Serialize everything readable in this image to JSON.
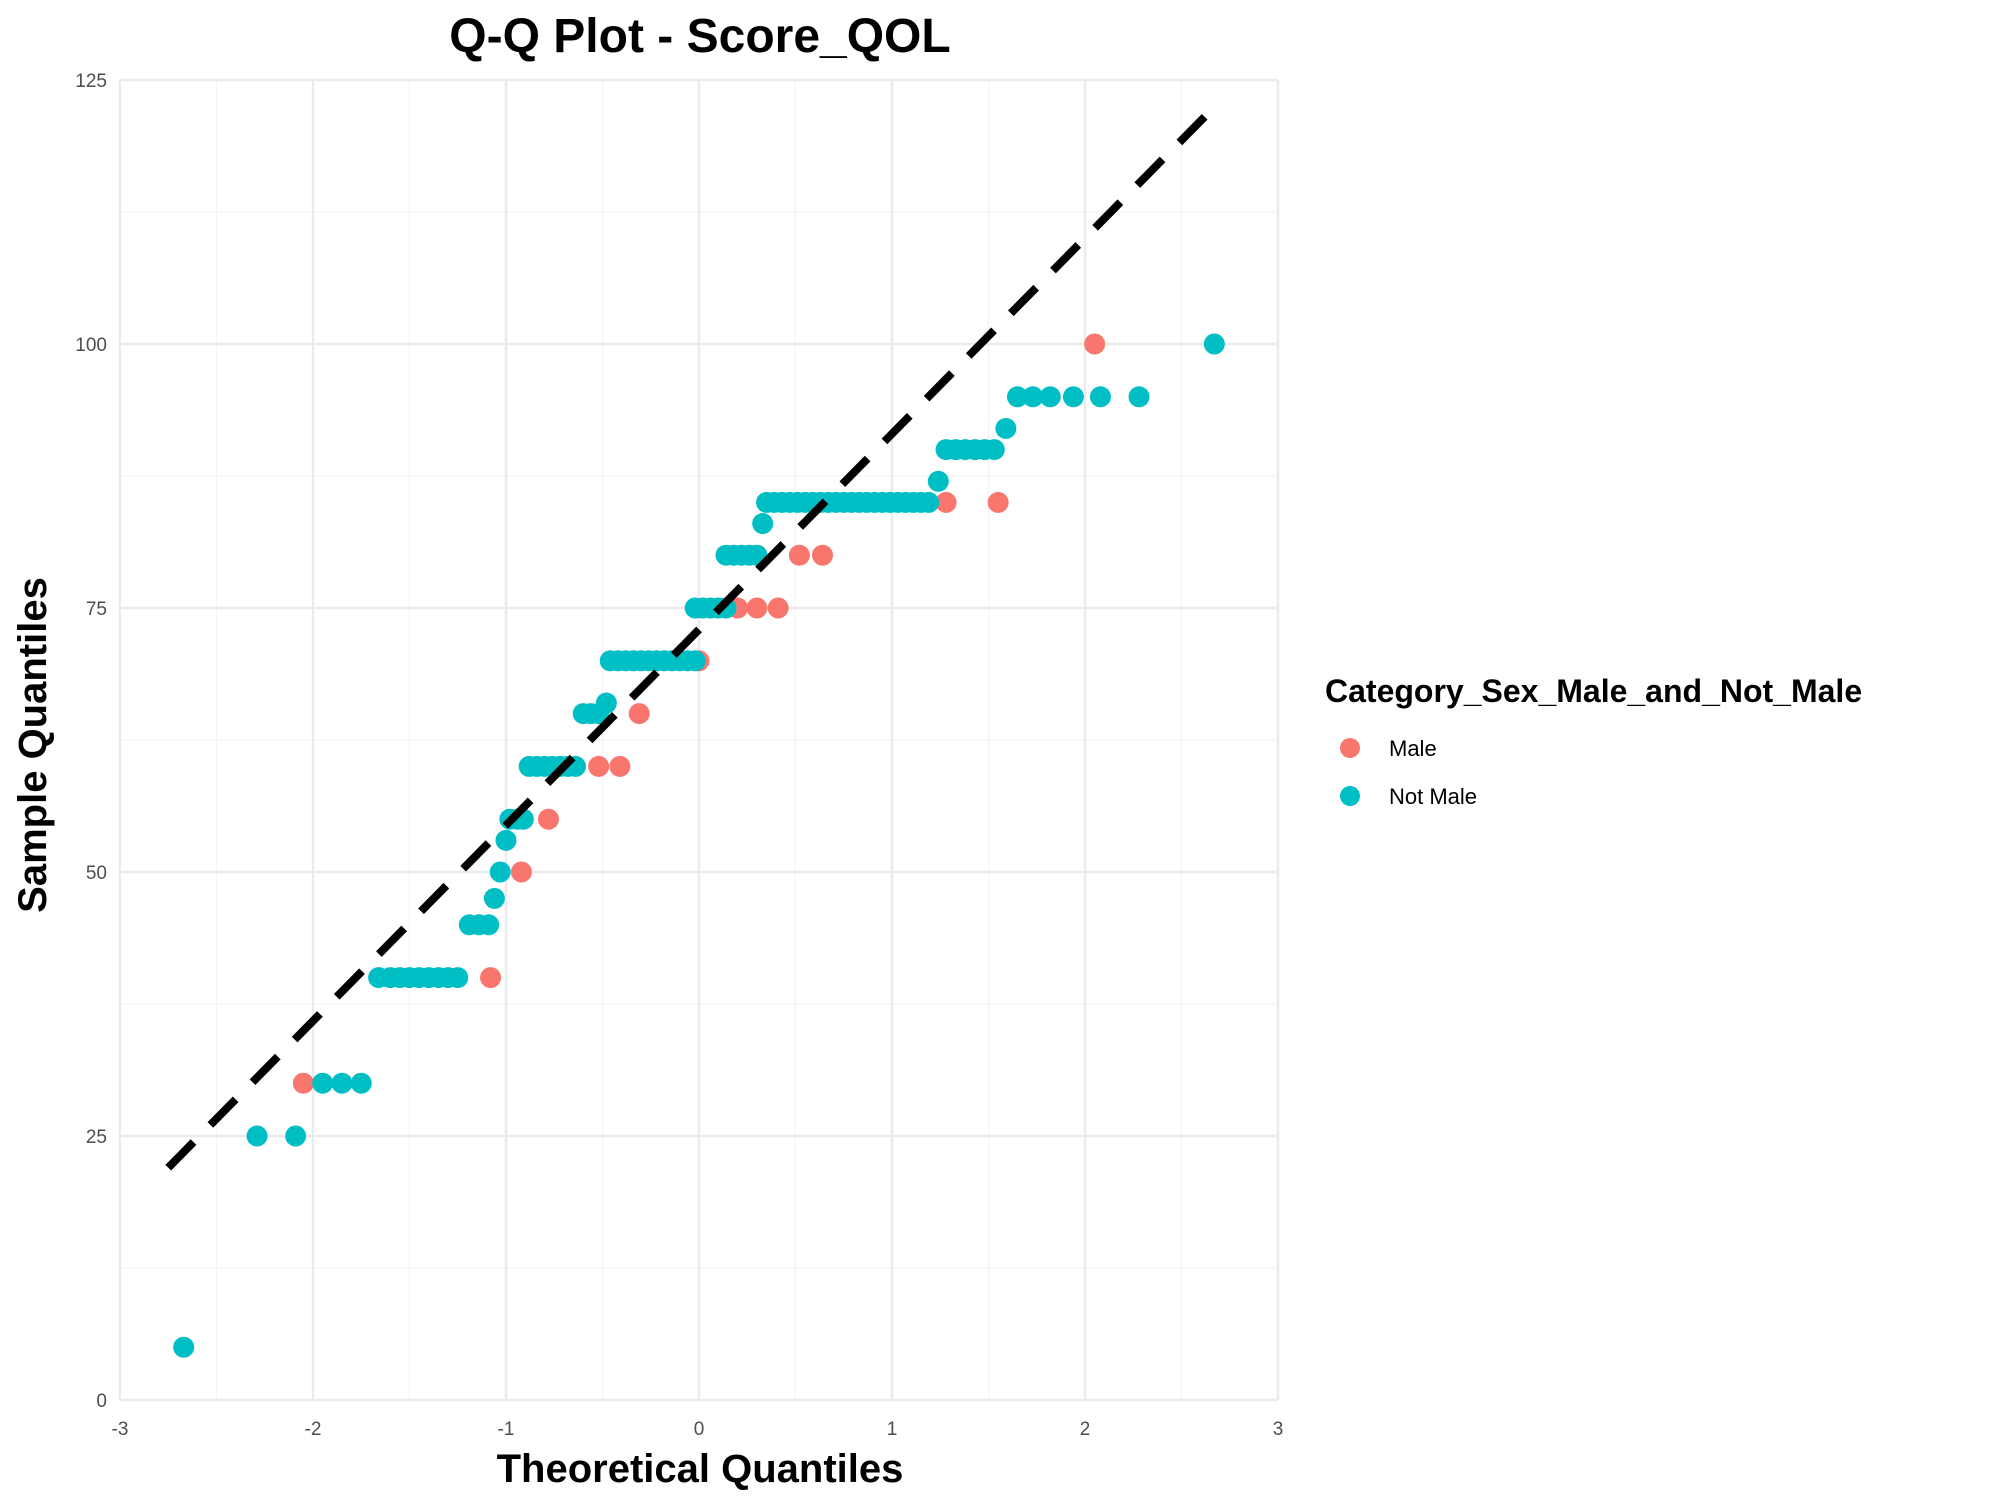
{
  "chart_data": {
    "type": "scatter",
    "title": "Q-Q Plot -  Score_QOL",
    "xlabel": "Theoretical Quantiles",
    "ylabel": "Sample Quantiles",
    "xlim": [
      -3,
      3
    ],
    "ylim": [
      0,
      125
    ],
    "x_ticks": [
      -3,
      -2,
      -1,
      0,
      1,
      2,
      3
    ],
    "y_ticks": [
      0,
      25,
      50,
      75,
      100,
      125
    ],
    "grid": true,
    "legend": {
      "title": "Category_Sex_Male_and_Not_Male",
      "placement": "right",
      "entries": [
        "Male",
        "Not Male"
      ]
    },
    "reference_line": {
      "style": "dashed",
      "color": "#000000",
      "from": [
        -2.75,
        22
      ],
      "to": [
        2.7,
        123
      ]
    },
    "series": [
      {
        "name": "Male",
        "color": "#F8766D",
        "points": [
          [
            -2.05,
            30
          ],
          [
            -1.08,
            40
          ],
          [
            -0.92,
            50
          ],
          [
            -0.78,
            55
          ],
          [
            -0.52,
            60
          ],
          [
            -0.41,
            60
          ],
          [
            -0.31,
            65
          ],
          [
            0.0,
            70
          ],
          [
            0.2,
            75
          ],
          [
            0.3,
            75
          ],
          [
            0.41,
            75
          ],
          [
            0.52,
            80
          ],
          [
            0.64,
            80
          ],
          [
            1.28,
            85
          ],
          [
            1.55,
            85
          ],
          [
            2.05,
            100
          ]
        ]
      },
      {
        "name": "Not Male",
        "color": "#00BFC4",
        "points": [
          [
            -2.67,
            5
          ],
          [
            -2.29,
            25
          ],
          [
            -2.09,
            25
          ],
          [
            -1.95,
            30
          ],
          [
            -1.85,
            30
          ],
          [
            -1.75,
            30
          ],
          [
            -1.66,
            40
          ],
          [
            -1.6,
            40
          ],
          [
            -1.55,
            40
          ],
          [
            -1.5,
            40
          ],
          [
            -1.45,
            40
          ],
          [
            -1.4,
            40
          ],
          [
            -1.35,
            40
          ],
          [
            -1.3,
            40
          ],
          [
            -1.25,
            40
          ],
          [
            -1.19,
            45
          ],
          [
            -1.14,
            45
          ],
          [
            -1.09,
            45
          ],
          [
            -1.06,
            47.5
          ],
          [
            -1.03,
            50
          ],
          [
            -1.0,
            53
          ],
          [
            -0.98,
            55
          ],
          [
            -0.94,
            55
          ],
          [
            -0.91,
            55
          ],
          [
            -0.88,
            60
          ],
          [
            -0.84,
            60
          ],
          [
            -0.8,
            60
          ],
          [
            -0.76,
            60
          ],
          [
            -0.72,
            60
          ],
          [
            -0.68,
            60
          ],
          [
            -0.64,
            60
          ],
          [
            -0.6,
            65
          ],
          [
            -0.56,
            65
          ],
          [
            -0.52,
            65
          ],
          [
            -0.48,
            66
          ],
          [
            -0.46,
            70
          ],
          [
            -0.42,
            70
          ],
          [
            -0.38,
            70
          ],
          [
            -0.34,
            70
          ],
          [
            -0.3,
            70
          ],
          [
            -0.26,
            70
          ],
          [
            -0.22,
            70
          ],
          [
            -0.18,
            70
          ],
          [
            -0.14,
            70
          ],
          [
            -0.1,
            70
          ],
          [
            -0.06,
            70
          ],
          [
            -0.02,
            70
          ],
          [
            -0.02,
            75
          ],
          [
            0.02,
            75
          ],
          [
            0.06,
            75
          ],
          [
            0.1,
            75
          ],
          [
            0.14,
            75
          ],
          [
            0.14,
            80
          ],
          [
            0.18,
            80
          ],
          [
            0.22,
            80
          ],
          [
            0.26,
            80
          ],
          [
            0.3,
            80
          ],
          [
            0.33,
            83
          ],
          [
            0.35,
            85
          ],
          [
            0.39,
            85
          ],
          [
            0.43,
            85
          ],
          [
            0.47,
            85
          ],
          [
            0.51,
            85
          ],
          [
            0.55,
            85
          ],
          [
            0.59,
            85
          ],
          [
            0.63,
            85
          ],
          [
            0.67,
            85
          ],
          [
            0.71,
            85
          ],
          [
            0.75,
            85
          ],
          [
            0.79,
            85
          ],
          [
            0.83,
            85
          ],
          [
            0.87,
            85
          ],
          [
            0.91,
            85
          ],
          [
            0.95,
            85
          ],
          [
            0.99,
            85
          ],
          [
            1.03,
            85
          ],
          [
            1.07,
            85
          ],
          [
            1.11,
            85
          ],
          [
            1.15,
            85
          ],
          [
            1.19,
            85
          ],
          [
            1.24,
            87
          ],
          [
            1.28,
            90
          ],
          [
            1.33,
            90
          ],
          [
            1.38,
            90
          ],
          [
            1.43,
            90
          ],
          [
            1.48,
            90
          ],
          [
            1.53,
            90
          ],
          [
            1.59,
            92
          ],
          [
            1.65,
            95
          ],
          [
            1.73,
            95
          ],
          [
            1.82,
            95
          ],
          [
            1.94,
            95
          ],
          [
            2.08,
            95
          ],
          [
            2.28,
            95
          ],
          [
            2.67,
            100
          ]
        ]
      }
    ]
  }
}
